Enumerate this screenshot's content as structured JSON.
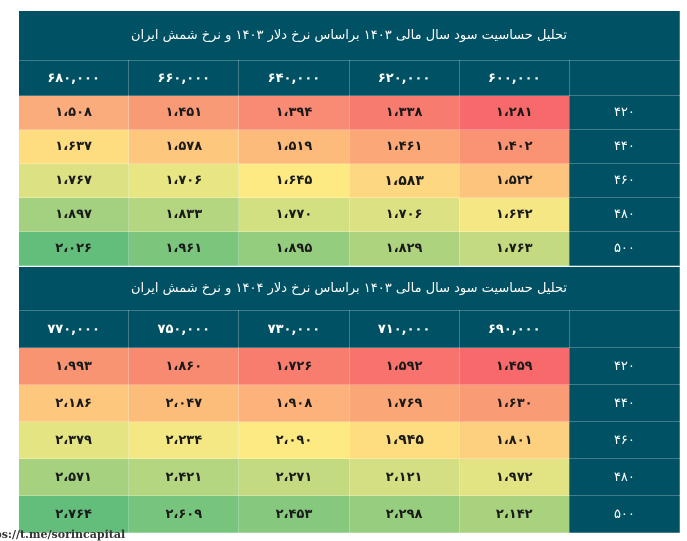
{
  "tables": [
    {
      "title": "تحلیل حساسیت سود سال مالی ۱۴۰۳ براساس نرخ دلار ۱۴۰۳ و نرخ شمش ایران",
      "columns": [
        "۶۰۰,۰۰۰",
        "۶۲۰,۰۰۰",
        "۶۴۰,۰۰۰",
        "۶۶۰,۰۰۰",
        "۶۸۰,۰۰۰"
      ],
      "rows": [
        {
          "label": "۴۲۰",
          "values": [
            "۱،۲۸۱",
            "۱،۳۳۸",
            "۱،۳۹۴",
            "۱،۴۵۱",
            "۱،۵۰۸"
          ],
          "colors": [
            "#f8696b",
            "#f87b70",
            "#f98b74",
            "#f99a77",
            "#fbac7c"
          ]
        },
        {
          "label": "۴۴۰",
          "values": [
            "۱،۴۰۲",
            "۱،۴۶۱",
            "۱،۵۱۹",
            "۱،۵۷۸",
            "۱،۶۳۷"
          ],
          "colors": [
            "#f99373",
            "#fba777",
            "#fcbb7b",
            "#fdc77d",
            "#fedd81"
          ]
        },
        {
          "label": "۴۶۰",
          "values": [
            "۱،۵۲۲",
            "۱،۵۸۳",
            "۱،۶۴۵",
            "۱،۷۰۶",
            "۱،۷۶۷"
          ],
          "colors": [
            "#fdc47d",
            "#fed880",
            "#feea83",
            "#e8e583",
            "#dce283"
          ]
        },
        {
          "label": "۴۸۰",
          "values": [
            "۱،۶۴۲",
            "۱،۷۰۶",
            "۱،۷۷۰",
            "۱،۸۳۳",
            "۱،۸۹۷"
          ],
          "colors": [
            "#f5e784",
            "#dce283",
            "#d2e082",
            "#b5d680",
            "#a4d17f"
          ]
        },
        {
          "label": "۵۰۰",
          "values": [
            "۱،۷۶۳",
            "۱،۸۲۹",
            "۱،۸۹۵",
            "۱،۹۶۱",
            "۲،۰۲۶"
          ],
          "colors": [
            "#c4da81",
            "#add37f",
            "#95cd7e",
            "#7bc57d",
            "#63be7b"
          ]
        }
      ],
      "highlight": {
        "row": 2,
        "col": 1
      }
    },
    {
      "title": "تحلیل حساسیت سود سال مالی ۱۴۰۳ براساس نرخ دلار ۱۴۰۴ و نرخ شمش ایران",
      "columns": [
        "۶۹۰,۰۰۰",
        "۷۱۰,۰۰۰",
        "۷۳۰,۰۰۰",
        "۷۵۰,۰۰۰",
        "۷۷۰,۰۰۰"
      ],
      "rows": [
        {
          "label": "۴۲۰",
          "values": [
            "۱،۴۵۹",
            "۱،۵۹۲",
            "۱،۷۲۶",
            "۱،۸۶۰",
            "۱،۹۹۳"
          ],
          "colors": [
            "#f8696b",
            "#f8736d",
            "#f87d6f",
            "#f98a72",
            "#f99473"
          ]
        },
        {
          "label": "۴۴۰",
          "values": [
            "۱،۶۳۰",
            "۱،۷۶۹",
            "۱،۹۰۸",
            "۲،۰۴۷",
            "۲،۱۸۶"
          ],
          "colors": [
            "#f99b74",
            "#faa676",
            "#fcb27a",
            "#fcbd7b",
            "#fdc87e"
          ]
        },
        {
          "label": "۴۶۰",
          "values": [
            "۱،۸۰۱",
            "۱،۹۴۵",
            "۲،۰۹۰",
            "۲،۲۳۴",
            "۲،۳۷۹"
          ],
          "colors": [
            "#fdd07f",
            "#fedd81",
            "#feea83",
            "#f3e884",
            "#e4e483"
          ]
        },
        {
          "label": "۴۸۰",
          "values": [
            "۱،۹۷۲",
            "۲،۱۲۱",
            "۲،۲۷۱",
            "۲،۴۲۱",
            "۲،۵۷۱"
          ],
          "colors": [
            "#e2e383",
            "#d3df82",
            "#c4da81",
            "#b5d680",
            "#a6d27f"
          ]
        },
        {
          "label": "۵۰۰",
          "values": [
            "۲،۱۴۲",
            "۲،۲۹۸",
            "۲،۴۵۳",
            "۲،۶۰۹",
            "۲،۷۶۴"
          ],
          "colors": [
            "#a9d27f",
            "#97cd7e",
            "#86c87d",
            "#77c47d",
            "#63be7b"
          ]
        }
      ],
      "highlight": {
        "row": 2,
        "col": 1
      }
    }
  ],
  "footer": {
    "source": "ps://t.me/sorincapital"
  },
  "colors": {
    "header_bg": "#005163"
  }
}
